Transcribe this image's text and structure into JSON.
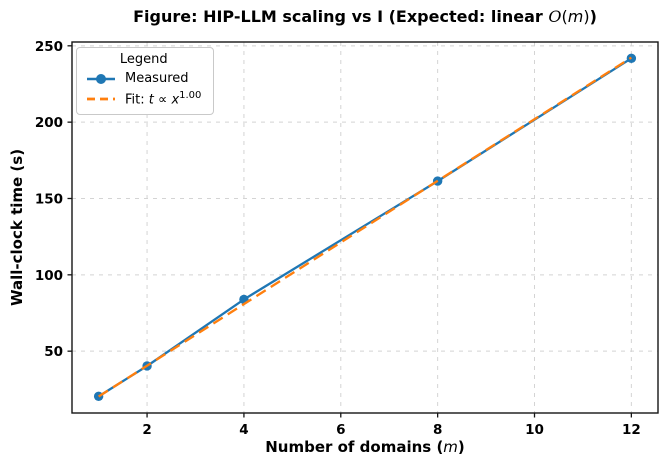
{
  "chart_data": {
    "type": "line",
    "title": "Figure: HIP-LLM scaling vs I (Expected: linear 𝒪(m))",
    "title_parts": {
      "before": "Figure: HIP-LLM scaling vs I (Expected: linear ",
      "script_o": "O",
      "open": "(",
      "m": "m",
      "close": ")",
      "after": ")"
    },
    "xlabel": "Number of domains (m)",
    "xlabel_parts": {
      "text": "Number of domains ",
      "open": "(",
      "m": "m",
      "close": ")"
    },
    "ylabel": "Wall-clock time (s)",
    "xlim": [
      0.45,
      12.55
    ],
    "ylim": [
      9.5,
      252.5
    ],
    "x_ticks": [
      2,
      4,
      6,
      8,
      10,
      12
    ],
    "y_ticks": [
      50,
      100,
      150,
      200,
      250
    ],
    "grid": true,
    "grid_style": "dashed",
    "legend": {
      "position": "upper left",
      "title": "Legend",
      "entries": [
        "Measured",
        "Fit: t ∝ x^1.00"
      ],
      "parts": {
        "measured_label": "Measured",
        "fit_prefix": "Fit: ",
        "fit_t": "t",
        "fit_propto": " ∝ ",
        "fit_x": "x",
        "fit_exp": "1.00"
      }
    },
    "series": [
      {
        "name": "Measured",
        "style": "solid-marker",
        "color": "#1f77b4",
        "x": [
          1,
          2,
          4,
          8,
          12
        ],
        "y": [
          20.4,
          40.3,
          83.9,
          161.4,
          241.8
        ]
      },
      {
        "name": "Fit: t ∝ x^1.00",
        "style": "dashed",
        "color": "#ff7f0e",
        "x": [
          1,
          12
        ],
        "y": [
          20.3,
          242.3
        ],
        "fit": {
          "exponent": 1.0,
          "coefficient": 20.2
        }
      }
    ],
    "colors": {
      "measured": "#1f77b4",
      "fit": "#ff7f0e",
      "grid": "#d4d4d4",
      "spine": "#151515",
      "text": "#000000"
    }
  }
}
